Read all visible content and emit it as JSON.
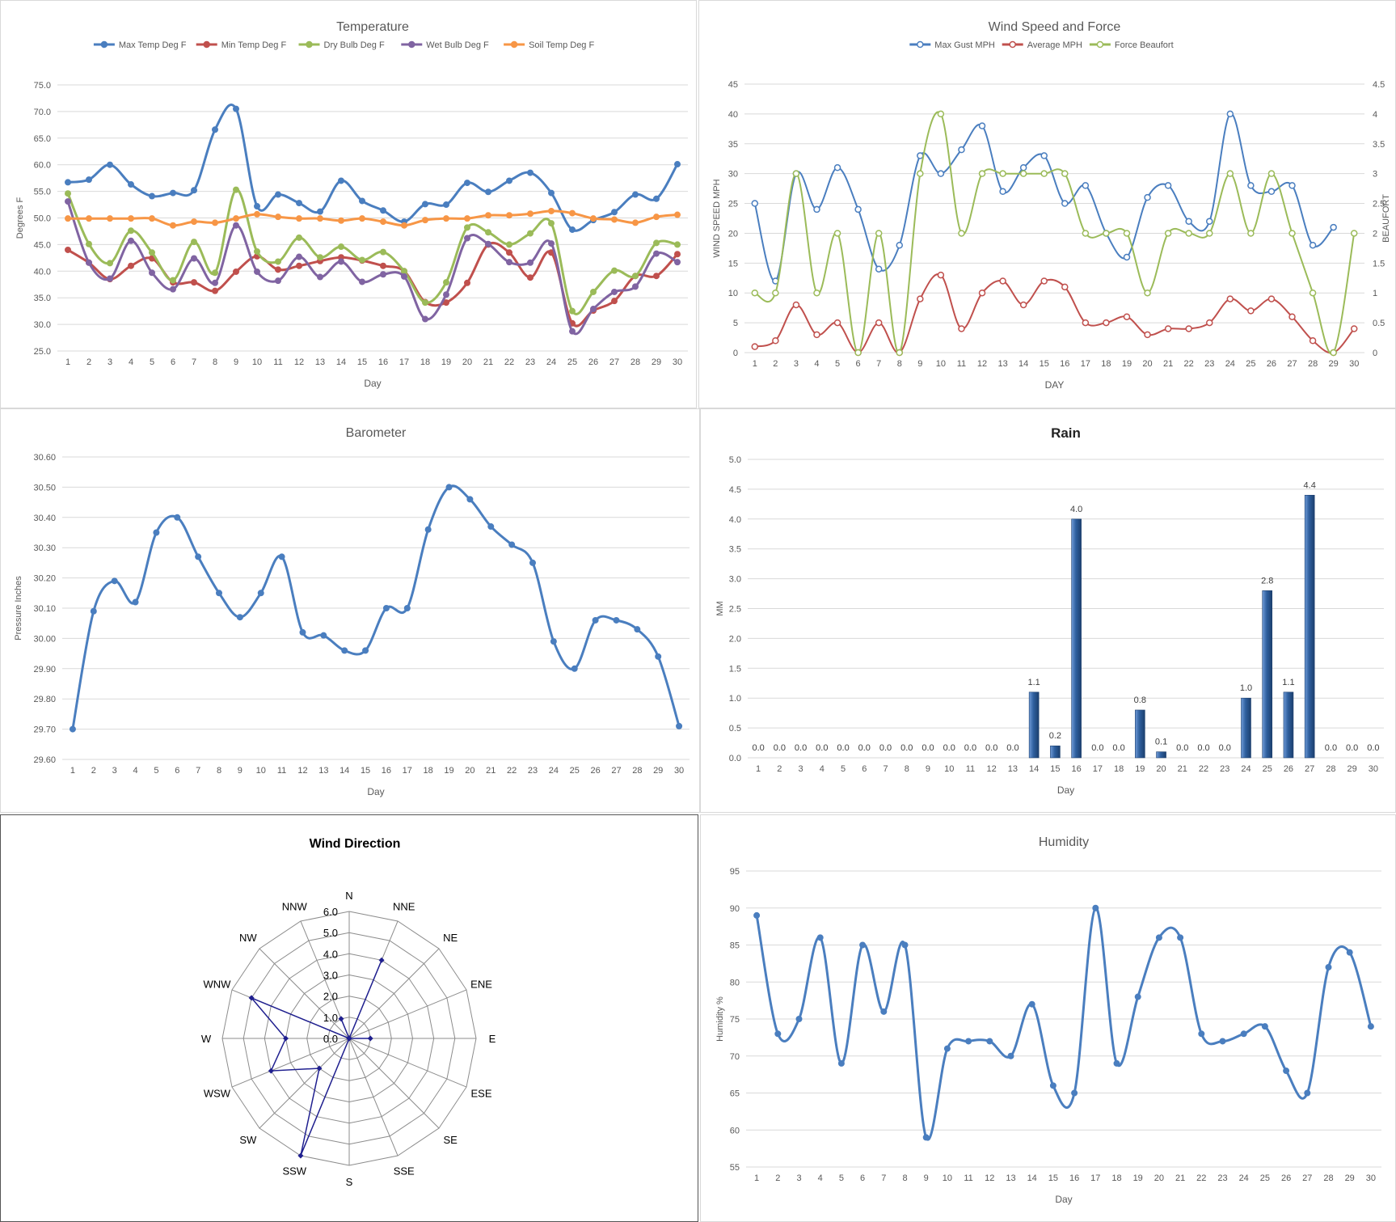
{
  "chart_data": [
    {
      "id": "temperature",
      "type": "line",
      "title": "Temperature",
      "xlabel": "Day",
      "ylabel": "Degrees F",
      "ylim": [
        25,
        75
      ],
      "yticks": [
        "25.0",
        "30.0",
        "35.0",
        "40.0",
        "45.0",
        "50.0",
        "55.0",
        "60.0",
        "65.0",
        "70.0",
        "75.0"
      ],
      "x": [
        1,
        2,
        3,
        4,
        5,
        6,
        7,
        8,
        9,
        10,
        11,
        12,
        13,
        14,
        15,
        16,
        17,
        18,
        19,
        20,
        21,
        22,
        23,
        24,
        25,
        26,
        27,
        28,
        29,
        30
      ],
      "legend": "top",
      "grid": true,
      "series": [
        {
          "name": "Max Temp Deg F",
          "color": "#4a7ebf",
          "values": [
            56.7,
            57.2,
            60.0,
            56.3,
            54.1,
            54.7,
            55.2,
            66.6,
            70.5,
            52.2,
            54.4,
            52.8,
            51.2,
            57.0,
            53.2,
            51.4,
            49.3,
            52.6,
            52.5,
            56.6,
            54.9,
            57.0,
            58.5,
            54.7,
            47.8,
            49.6,
            51.1,
            54.4,
            53.6,
            60.1
          ]
        },
        {
          "name": "Min Temp Deg F",
          "color": "#c0504d",
          "values": [
            44.0,
            41.6,
            38.5,
            41.0,
            42.4,
            37.9,
            37.9,
            36.3,
            39.9,
            42.8,
            40.3,
            41.0,
            41.9,
            42.6,
            42.0,
            41.0,
            40.0,
            34.2,
            34.1,
            37.8,
            45.0,
            43.5,
            38.8,
            43.5,
            30.2,
            32.6,
            34.4,
            39.1,
            39.1,
            43.2
          ]
        },
        {
          "name": "Dry Bulb Deg F",
          "color": "#9bbb59",
          "values": [
            54.6,
            45.1,
            41.5,
            47.6,
            43.5,
            38.3,
            45.5,
            39.7,
            55.3,
            43.7,
            41.8,
            46.3,
            42.6,
            44.6,
            42.1,
            43.6,
            40.0,
            34.1,
            37.9,
            48.2,
            47.3,
            45.0,
            47.1,
            49.0,
            32.5,
            36.1,
            40.1,
            39.1,
            45.3,
            45.0
          ]
        },
        {
          "name": "Wet Bulb Deg F",
          "color": "#8064a2",
          "values": [
            53.1,
            41.6,
            38.6,
            45.7,
            39.7,
            36.6,
            42.4,
            37.8,
            48.6,
            39.9,
            38.2,
            42.7,
            38.9,
            41.8,
            38.0,
            39.4,
            39.0,
            31.0,
            35.6,
            46.2,
            45.1,
            41.7,
            41.6,
            45.2,
            28.7,
            32.9,
            36.1,
            37.1,
            43.3,
            41.7
          ]
        },
        {
          "name": "Soil Temp Deg F",
          "color": "#f79646",
          "values": [
            49.9,
            49.9,
            49.9,
            49.9,
            49.9,
            48.6,
            49.3,
            49.1,
            49.9,
            50.7,
            50.2,
            49.9,
            49.9,
            49.5,
            49.9,
            49.3,
            48.6,
            49.6,
            49.9,
            49.9,
            50.5,
            50.5,
            50.8,
            51.3,
            50.9,
            49.9,
            49.7,
            49.1,
            50.2,
            50.6
          ]
        }
      ]
    },
    {
      "id": "wind",
      "type": "line",
      "title": "Wind Speed and Force",
      "xlabel": "DAY",
      "ylabel": "WIND SPEED MPH",
      "y2label": "BEAUFORT",
      "ylim": [
        0,
        45
      ],
      "y2lim": [
        0,
        4.5
      ],
      "yticks": [
        "0",
        "5",
        "10",
        "15",
        "20",
        "25",
        "30",
        "35",
        "40",
        "45"
      ],
      "y2ticks": [
        "0",
        "0.5",
        "1",
        "1.5",
        "2",
        "2.5",
        "3",
        "3.5",
        "4",
        "4.5"
      ],
      "x": [
        1,
        2,
        3,
        4,
        5,
        6,
        7,
        8,
        9,
        10,
        11,
        12,
        13,
        14,
        15,
        16,
        17,
        18,
        19,
        20,
        21,
        22,
        23,
        24,
        25,
        26,
        27,
        28,
        29,
        30
      ],
      "legend": "top",
      "grid": true,
      "series": [
        {
          "name": "Max Gust MPH",
          "color": "#4a7ebf",
          "axis": "left",
          "values": [
            25,
            12,
            30,
            24,
            31,
            24,
            14,
            18,
            33,
            30,
            34,
            38,
            27,
            31,
            33,
            25,
            28,
            20,
            16,
            26,
            28,
            22,
            22,
            40,
            28,
            27,
            28,
            18,
            21,
            null
          ]
        },
        {
          "name": "Average MPH",
          "color": "#c0504d",
          "axis": "left",
          "values": [
            1,
            2,
            8,
            3,
            5,
            0,
            5,
            0,
            9,
            13,
            4,
            10,
            12,
            8,
            12,
            11,
            5,
            5,
            6,
            3,
            4,
            4,
            5,
            9,
            7,
            9,
            6,
            2,
            0,
            4
          ]
        },
        {
          "name": "Force Beaufort",
          "color": "#9bbb59",
          "axis": "right",
          "values": [
            1,
            1,
            3,
            1,
            2,
            0,
            2,
            0,
            3,
            4,
            2,
            3,
            3,
            3,
            3,
            3,
            2,
            2,
            2,
            1,
            2,
            2,
            2,
            3,
            2,
            3,
            2,
            1,
            0,
            2
          ]
        }
      ]
    },
    {
      "id": "barometer",
      "type": "line",
      "title": "Barometer",
      "xlabel": "Day",
      "ylabel": "Pressure Inches",
      "ylim": [
        29.6,
        30.6
      ],
      "yticks": [
        "29.60",
        "29.70",
        "29.80",
        "29.90",
        "30.00",
        "30.10",
        "30.20",
        "30.30",
        "30.40",
        "30.50",
        "30.60"
      ],
      "x": [
        1,
        2,
        3,
        4,
        5,
        6,
        7,
        8,
        9,
        10,
        11,
        12,
        13,
        14,
        15,
        16,
        17,
        18,
        19,
        20,
        21,
        22,
        23,
        24,
        25,
        26,
        27,
        28,
        29,
        30
      ],
      "grid": true,
      "series": [
        {
          "name": "",
          "color": "#4a7ebf",
          "values": [
            29.7,
            30.09,
            30.19,
            30.12,
            30.35,
            30.4,
            30.27,
            30.15,
            30.07,
            30.15,
            30.27,
            30.02,
            30.01,
            29.96,
            29.96,
            30.1,
            30.1,
            30.36,
            30.5,
            30.46,
            30.37,
            30.31,
            30.25,
            29.99,
            29.9,
            30.06,
            30.06,
            30.03,
            29.94,
            29.71
          ]
        }
      ]
    },
    {
      "id": "rain",
      "type": "bar",
      "title": "Rain",
      "xlabel": "Day",
      "ylabel": "MM",
      "ylim": [
        0,
        5
      ],
      "yticks": [
        "0.0",
        "0.5",
        "1.0",
        "1.5",
        "2.0",
        "2.5",
        "3.0",
        "3.5",
        "4.0",
        "4.5",
        "5.0"
      ],
      "categories": [
        "1",
        "2",
        "3",
        "4",
        "5",
        "6",
        "7",
        "8",
        "9",
        "10",
        "11",
        "12",
        "13",
        "14",
        "15",
        "16",
        "17",
        "18",
        "19",
        "20",
        "21",
        "22",
        "23",
        "24",
        "25",
        "26",
        "27",
        "28",
        "29",
        "30"
      ],
      "values": [
        0,
        0,
        0,
        0,
        0,
        0,
        0,
        0,
        0,
        0,
        0,
        0,
        0,
        1.1,
        0.2,
        4.0,
        0,
        0,
        0.8,
        0.1,
        0,
        0,
        0,
        1.0,
        2.8,
        1.1,
        4.4,
        0,
        0,
        0
      ],
      "value_labels": [
        "0.0",
        "0.0",
        "0.0",
        "0.0",
        "0.0",
        "0.0",
        "0.0",
        "0.0",
        "0.0",
        "0.0",
        "0.0",
        "0.0",
        "0.0",
        "1.1",
        "0.2",
        "4.0",
        "0.0",
        "0.0",
        "0.8",
        "0.1",
        "0.0",
        "0.0",
        "0.0",
        "1.0",
        "2.8",
        "1.1",
        "4.4",
        "0.0",
        "0.0",
        "0.0"
      ],
      "color": "#2e5f9e",
      "grid": true
    },
    {
      "id": "wind_direction",
      "type": "radar",
      "title": "Wind Direction",
      "categories": [
        "N",
        "NNE",
        "NE",
        "ENE",
        "E",
        "ESE",
        "SE",
        "SSE",
        "S",
        "SSW",
        "SW",
        "WSW",
        "W",
        "WNW",
        "NW",
        "NNW"
      ],
      "values": [
        0,
        4,
        0,
        0,
        1,
        0,
        0,
        0,
        0,
        6,
        2,
        4,
        3,
        5,
        0,
        1
      ],
      "rlim": [
        0,
        6
      ],
      "rticks": [
        "0.0",
        "1.0",
        "2.0",
        "3.0",
        "4.0",
        "5.0",
        "6.0"
      ],
      "color": "#1f1f8f"
    },
    {
      "id": "humidity",
      "type": "line",
      "title": "Humidity",
      "xlabel": "Day",
      "ylabel": "Humidity %",
      "ylim": [
        55,
        95
      ],
      "yticks": [
        "55",
        "60",
        "65",
        "70",
        "75",
        "80",
        "85",
        "90",
        "95"
      ],
      "x": [
        1,
        2,
        3,
        4,
        5,
        6,
        7,
        8,
        9,
        10,
        11,
        12,
        13,
        14,
        15,
        16,
        17,
        18,
        19,
        20,
        21,
        22,
        23,
        24,
        25,
        26,
        27,
        28,
        29,
        30
      ],
      "grid": true,
      "series": [
        {
          "name": "",
          "color": "#4a7ebf",
          "values": [
            89,
            73,
            75,
            86,
            69,
            85,
            76,
            85,
            59,
            71,
            72,
            72,
            70,
            77,
            66,
            65,
            90,
            69,
            78,
            86,
            86,
            73,
            72,
            73,
            74,
            68,
            65,
            82,
            84,
            74
          ]
        }
      ]
    }
  ]
}
